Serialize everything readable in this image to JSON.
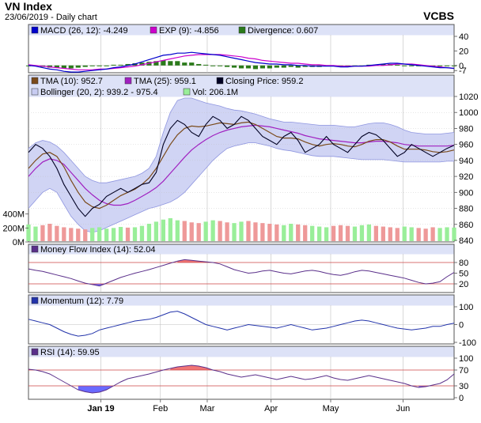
{
  "header": {
    "title": "VN Index",
    "subtitle": "23/06/2019 - Daily chart",
    "ticker": "VCBS"
  },
  "colors": {
    "panel_header_bg": "#dde2f7",
    "grid": "#bfbfbf",
    "macd": "#0000cc",
    "exp": "#cc00cc",
    "divergence": "#2a7a1a",
    "tma10": "#7a4a1a",
    "tma25": "#a020c0",
    "close": "#000022",
    "bollinger_fill": "#c8ccf2",
    "bollinger_edge": "#8f96e0",
    "vol_up": "#99ee99",
    "vol_down": "#ee9999",
    "indicator_line": "#5a2f8a",
    "overbought_fill": "#ee6666",
    "oversold_fill": "#5a5aff",
    "threshold_line": "#cc4444",
    "momentum_line": "#2233aa"
  },
  "months": [
    "Jan 19",
    "Feb",
    "Mar",
    "Apr",
    "May",
    "Jun"
  ],
  "chart_data": [
    {
      "type": "line",
      "name": "MACD panel",
      "legend": [
        {
          "label": "MACD (26, 12): -4.249",
          "color": "#0000cc"
        },
        {
          "label": "EXP (9): -4.856",
          "color": "#cc00cc"
        },
        {
          "label": "Divergence: 0.607",
          "color": "#2a7a1a"
        }
      ],
      "ylim": [
        -10,
        40
      ],
      "yticks": [
        "40",
        "20",
        "0",
        "-7"
      ],
      "macd": [
        0,
        -1,
        -3,
        -5,
        -6,
        -8,
        -9,
        -9,
        -8,
        -7,
        -6,
        -5,
        -3,
        -2,
        0,
        2,
        5,
        8,
        11,
        14,
        15,
        17,
        17,
        18,
        17,
        16,
        15,
        14,
        12,
        10,
        8,
        6,
        4,
        3,
        2,
        2,
        1,
        1,
        0,
        0,
        -1,
        -1,
        -1,
        -1,
        -2,
        -2,
        -1,
        -1,
        0,
        1,
        2,
        3,
        3,
        2,
        1,
        0,
        -1,
        -2,
        -3,
        -3,
        -4
      ],
      "signal": [
        1,
        0,
        -1,
        -2,
        -3,
        -4,
        -5,
        -6,
        -6,
        -6,
        -5,
        -5,
        -4,
        -3,
        -2,
        -1,
        1,
        3,
        5,
        7,
        9,
        11,
        13,
        14,
        15,
        15,
        15,
        15,
        14,
        13,
        12,
        10,
        9,
        7,
        6,
        5,
        4,
        3,
        3,
        2,
        1,
        1,
        0,
        0,
        -1,
        -1,
        -1,
        -1,
        -1,
        0,
        0,
        1,
        2,
        2,
        2,
        1,
        0,
        -1,
        -2,
        -3,
        -4
      ],
      "divergence": [
        -1,
        -1,
        -2,
        -3,
        -3,
        -4,
        -4,
        -3,
        -2,
        -1,
        -1,
        0,
        1,
        1,
        2,
        3,
        4,
        5,
        6,
        7,
        6,
        6,
        4,
        4,
        2,
        1,
        0,
        -1,
        -2,
        -3,
        -4,
        -4,
        -5,
        -4,
        -4,
        -3,
        -3,
        -2,
        -3,
        -2,
        -2,
        -2,
        -1,
        -1,
        -1,
        -1,
        0,
        0,
        1,
        1,
        2,
        2,
        1,
        0,
        -1,
        -1,
        -1,
        -1,
        -1,
        0,
        0
      ]
    },
    {
      "type": "line",
      "name": "Price panel",
      "legend": [
        {
          "label": "TMA (10): 952.7",
          "color": "#7a4a1a"
        },
        {
          "label": "TMA (25): 959.1",
          "color": "#a020c0"
        },
        {
          "label": "Closing Price: 959.2",
          "color": "#000022"
        },
        {
          "label": "Bollinger (20, 2): 939.2 - 975.4",
          "color": "#c8ccf2"
        },
        {
          "label": "Vol: 206.1M",
          "color": "#99ee99"
        }
      ],
      "ylim": [
        840,
        1020
      ],
      "yticks": [
        "1020",
        "1000",
        "980",
        "960",
        "940",
        "920",
        "900",
        "880",
        "860",
        "840"
      ],
      "vol_ticks": [
        "400M",
        "200M",
        "0M"
      ],
      "vol_max": 600,
      "close": [
        950,
        960,
        955,
        945,
        930,
        910,
        895,
        880,
        870,
        880,
        885,
        895,
        900,
        905,
        900,
        905,
        910,
        912,
        925,
        960,
        980,
        990,
        985,
        975,
        970,
        985,
        995,
        990,
        980,
        985,
        995,
        990,
        980,
        970,
        965,
        960,
        970,
        975,
        965,
        950,
        955,
        960,
        970,
        960,
        955,
        950,
        960,
        970,
        975,
        972,
        965,
        955,
        945,
        950,
        960,
        955,
        950,
        945,
        950,
        955,
        959
      ],
      "tma10": [
        930,
        940,
        948,
        950,
        945,
        932,
        915,
        900,
        888,
        882,
        880,
        884,
        890,
        896,
        900,
        904,
        910,
        918,
        930,
        945,
        960,
        972,
        980,
        983,
        982,
        983,
        985,
        987,
        986,
        985,
        987,
        988,
        985,
        980,
        975,
        970,
        968,
        968,
        967,
        963,
        960,
        958,
        960,
        961,
        960,
        958,
        957,
        960,
        964,
        966,
        966,
        963,
        958,
        954,
        954,
        954,
        953,
        951,
        950,
        951,
        953
      ],
      "tma25": [
        920,
        930,
        938,
        942,
        940,
        935,
        925,
        915,
        905,
        897,
        890,
        886,
        884,
        884,
        886,
        890,
        895,
        900,
        906,
        914,
        924,
        934,
        944,
        953,
        960,
        966,
        971,
        975,
        978,
        980,
        982,
        983,
        984,
        983,
        982,
        980,
        978,
        976,
        974,
        971,
        969,
        967,
        966,
        965,
        964,
        963,
        962,
        962,
        963,
        964,
        964,
        963,
        962,
        960,
        959,
        958,
        958,
        958,
        958,
        958,
        959
      ],
      "boll_upper": [
        955,
        962,
        965,
        963,
        958,
        950,
        940,
        930,
        920,
        915,
        912,
        912,
        914,
        916,
        918,
        920,
        924,
        930,
        945,
        975,
        1000,
        1015,
        1018,
        1018,
        1015,
        1012,
        1010,
        1008,
        1005,
        1003,
        1002,
        1000,
        998,
        995,
        992,
        990,
        988,
        988,
        987,
        986,
        985,
        984,
        984,
        984,
        983,
        982,
        982,
        984,
        986,
        987,
        987,
        985,
        982,
        978,
        975,
        974,
        973,
        973,
        973,
        974,
        975
      ],
      "boll_lower": [
        880,
        890,
        900,
        905,
        900,
        885,
        870,
        860,
        852,
        850,
        852,
        856,
        860,
        864,
        868,
        872,
        876,
        880,
        882,
        885,
        888,
        893,
        900,
        910,
        920,
        930,
        940,
        948,
        955,
        958,
        960,
        962,
        962,
        960,
        958,
        955,
        953,
        952,
        950,
        948,
        946,
        945,
        945,
        945,
        944,
        943,
        942,
        941,
        941,
        941,
        941,
        940,
        939,
        938,
        938,
        938,
        938,
        938,
        938,
        939,
        939
      ],
      "volume": [
        250,
        220,
        240,
        260,
        230,
        210,
        200,
        190,
        180,
        200,
        210,
        190,
        200,
        215,
        205,
        210,
        230,
        260,
        290,
        320,
        340,
        310,
        300,
        280,
        270,
        290,
        310,
        300,
        280,
        270,
        290,
        300,
        280,
        270,
        260,
        250,
        240,
        260,
        250,
        240,
        230,
        220,
        210,
        230,
        240,
        230,
        220,
        240,
        250,
        230,
        220,
        210,
        200,
        220,
        210,
        200,
        190,
        210,
        200,
        210,
        206
      ],
      "volume_up": [
        true,
        true,
        false,
        false,
        false,
        false,
        false,
        false,
        false,
        true,
        true,
        true,
        true,
        true,
        false,
        true,
        true,
        true,
        true,
        true,
        true,
        true,
        false,
        false,
        false,
        true,
        true,
        false,
        false,
        true,
        true,
        false,
        false,
        false,
        false,
        false,
        true,
        true,
        false,
        false,
        true,
        true,
        true,
        false,
        false,
        false,
        true,
        true,
        true,
        false,
        false,
        false,
        false,
        true,
        true,
        false,
        false,
        false,
        true,
        true,
        true
      ]
    },
    {
      "type": "line",
      "name": "Money Flow panel",
      "legend": [
        {
          "label": "Money Flow Index (14): 52.04",
          "color": "#5a2f8a"
        }
      ],
      "ylim": [
        0,
        100
      ],
      "yticks": [
        "80",
        "50",
        "20"
      ],
      "thresholds": [
        20,
        80
      ],
      "values": [
        62,
        58,
        55,
        50,
        45,
        40,
        35,
        28,
        22,
        18,
        14,
        22,
        30,
        38,
        44,
        50,
        55,
        60,
        66,
        72,
        78,
        84,
        88,
        86,
        84,
        82,
        80,
        76,
        68,
        60,
        55,
        50,
        52,
        56,
        58,
        54,
        50,
        48,
        52,
        56,
        58,
        55,
        50,
        46,
        44,
        48,
        54,
        58,
        56,
        52,
        48,
        44,
        40,
        36,
        30,
        24,
        20,
        22,
        26,
        40,
        52
      ]
    },
    {
      "type": "line",
      "name": "Momentum panel",
      "legend": [
        {
          "label": "Momentum (12): 7.79",
          "color": "#2233aa"
        }
      ],
      "ylim": [
        -100,
        100
      ],
      "yticks": [
        "100",
        "0",
        "-100"
      ],
      "values": [
        30,
        20,
        10,
        0,
        -20,
        -40,
        -55,
        -65,
        -60,
        -50,
        -30,
        -20,
        -10,
        0,
        10,
        20,
        25,
        30,
        40,
        55,
        70,
        75,
        60,
        40,
        20,
        0,
        -10,
        -20,
        -30,
        -20,
        -10,
        0,
        -5,
        -10,
        -15,
        -20,
        -10,
        0,
        -10,
        -20,
        -30,
        -25,
        -20,
        -10,
        0,
        10,
        20,
        25,
        20,
        10,
        0,
        -10,
        -20,
        -25,
        -30,
        -25,
        -20,
        -10,
        -10,
        0,
        8
      ]
    },
    {
      "type": "line",
      "name": "RSI panel",
      "legend": [
        {
          "label": "RSI (14): 59.95",
          "color": "#5a2f8a"
        }
      ],
      "ylim": [
        0,
        100
      ],
      "yticks": [
        "100",
        "70",
        "30",
        "0"
      ],
      "thresholds": [
        30,
        70
      ],
      "values": [
        72,
        70,
        66,
        60,
        50,
        40,
        30,
        20,
        15,
        12,
        14,
        20,
        30,
        40,
        48,
        52,
        56,
        60,
        65,
        70,
        74,
        78,
        80,
        82,
        80,
        76,
        70,
        66,
        60,
        56,
        52,
        55,
        58,
        54,
        50,
        46,
        50,
        54,
        50,
        46,
        48,
        52,
        56,
        50,
        46,
        44,
        48,
        52,
        56,
        52,
        48,
        44,
        40,
        36,
        30,
        26,
        28,
        32,
        36,
        45,
        60
      ]
    }
  ]
}
